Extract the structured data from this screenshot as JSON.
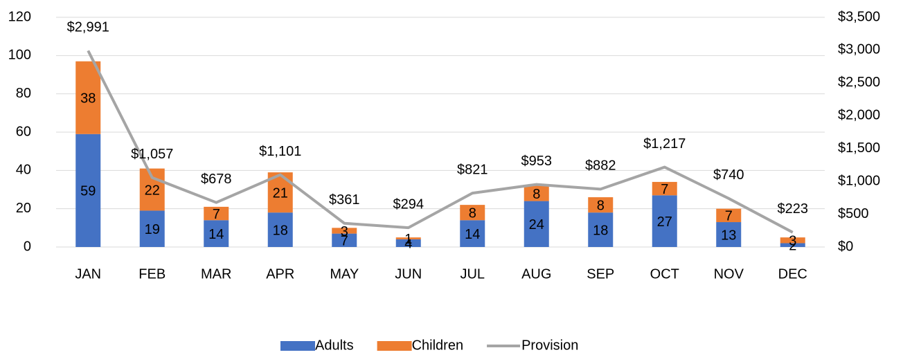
{
  "chart_data": {
    "type": "bar",
    "stacked": true,
    "categories": [
      "JAN",
      "FEB",
      "MAR",
      "APR",
      "MAY",
      "JUN",
      "JUL",
      "AUG",
      "SEP",
      "OCT",
      "NOV",
      "DEC"
    ],
    "series": [
      {
        "name": "Adults",
        "color": "#4472c4",
        "values": [
          59,
          19,
          14,
          18,
          7,
          4,
          14,
          24,
          18,
          27,
          13,
          2
        ]
      },
      {
        "name": "Children",
        "color": "#ed7d31",
        "values": [
          38,
          22,
          7,
          21,
          3,
          1,
          8,
          8,
          8,
          7,
          7,
          3
        ]
      },
      {
        "name": "Provision",
        "color": "#a5a5a5",
        "type": "line",
        "axis": "y2",
        "values": [
          2991,
          1057,
          678,
          1101,
          361,
          294,
          821,
          953,
          882,
          1217,
          740,
          223
        ],
        "value_labels": [
          "$2,991",
          "$1,057",
          "$678",
          "$1,101",
          "$361",
          "$294",
          "$821",
          "$953",
          "$882",
          "$1,217",
          "$740",
          "$223"
        ]
      }
    ],
    "ylim": [
      0,
      120
    ],
    "yticks": [
      0,
      20,
      40,
      60,
      80,
      100,
      120
    ],
    "y2lim": [
      0,
      3500
    ],
    "y2ticks": [
      {
        "value": 0,
        "label": "$0"
      },
      {
        "value": 500,
        "label": "$500"
      },
      {
        "value": 1000,
        "label": "$1,000"
      },
      {
        "value": 1500,
        "label": "$1,500"
      },
      {
        "value": 2000,
        "label": "$2,000"
      },
      {
        "value": 2500,
        "label": "$2,500"
      },
      {
        "value": 3000,
        "label": "$3,000"
      },
      {
        "value": 3500,
        "label": "$3,500"
      }
    ],
    "grid": true,
    "legend": "bottom"
  }
}
